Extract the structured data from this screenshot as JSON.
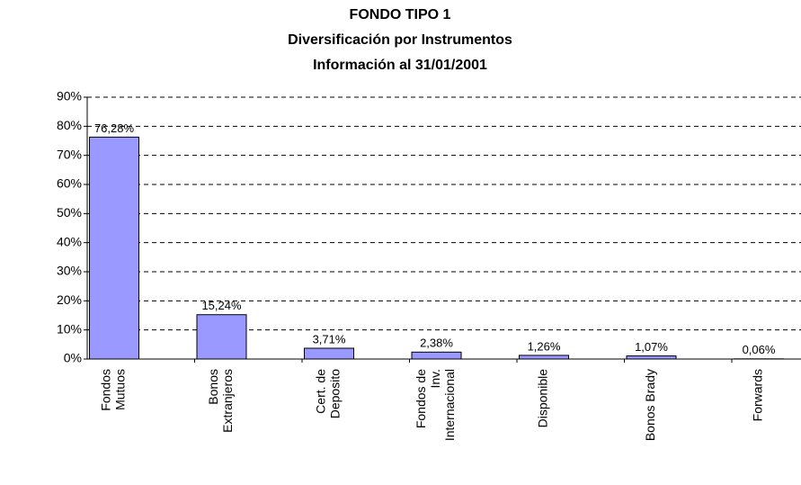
{
  "chart_data": {
    "type": "bar",
    "title": "FONDO TIPO 1",
    "subtitle": [
      "Diversificación por Instrumentos",
      "Información al 31/01/2001"
    ],
    "categories": [
      [
        "Fondos",
        "Mutuos"
      ],
      [
        "Bonos",
        "Extranjeros"
      ],
      [
        "Cert. de",
        "Deposito"
      ],
      [
        "Fondos de",
        "Inv.",
        "Internacional"
      ],
      [
        "Disponible"
      ],
      [
        "Bonos Brady"
      ],
      [
        "Forwards"
      ]
    ],
    "values": [
      76.28,
      15.24,
      3.71,
      2.38,
      1.26,
      1.07,
      0.06
    ],
    "value_labels": [
      "76,28%",
      "15,24%",
      "3,71%",
      "2,38%",
      "1,26%",
      "1,07%",
      "0,06%"
    ],
    "color": "#9999ff",
    "ylim": [
      0,
      90
    ],
    "yticks": [
      {
        "value": 0,
        "label": "0%"
      },
      {
        "value": 10,
        "label": "10%"
      },
      {
        "value": 20,
        "label": "20%"
      },
      {
        "value": 30,
        "label": "30%"
      },
      {
        "value": 40,
        "label": "40%"
      },
      {
        "value": 50,
        "label": "50%"
      },
      {
        "value": 60,
        "label": "60%"
      },
      {
        "value": 70,
        "label": "70%"
      },
      {
        "value": 80,
        "label": "80%"
      },
      {
        "value": 90,
        "label": "90%"
      }
    ],
    "grid": true
  }
}
